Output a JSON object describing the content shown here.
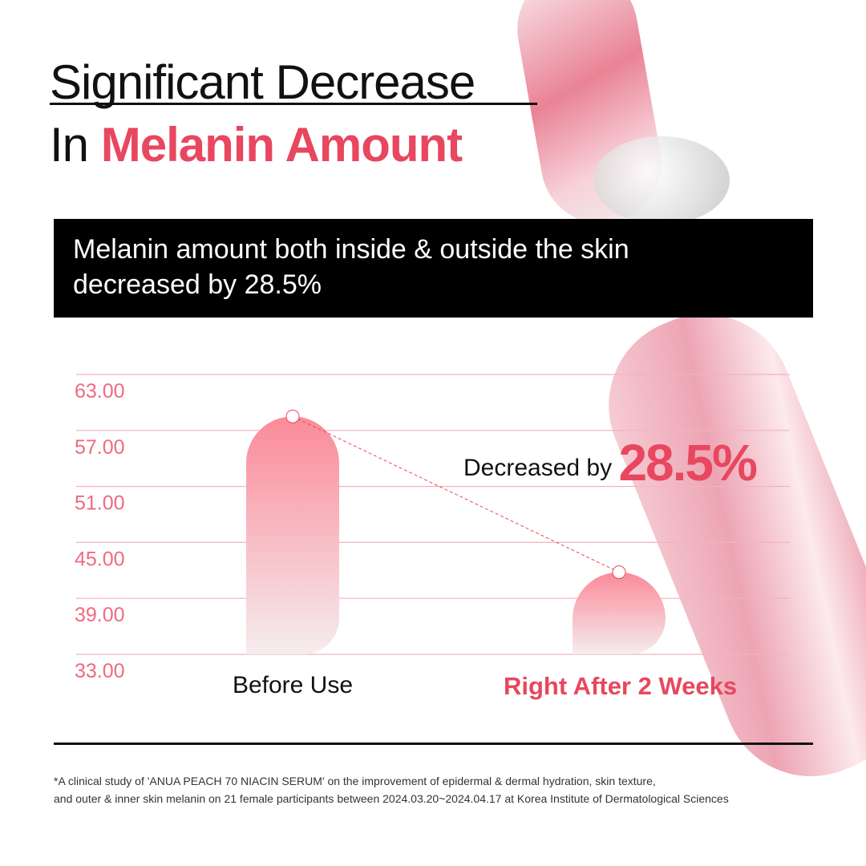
{
  "title": {
    "line1": "Significant Decrease",
    "line2_plain": "In ",
    "line2_accent": "Melanin Amount"
  },
  "banner": {
    "line1": "Melanin amount both inside & outside the skin",
    "line2": "decreased by 28.5%"
  },
  "callout": {
    "prefix": "Decreased by ",
    "value": "28.5%"
  },
  "footnote": {
    "line1": "*A clinical study of 'ANUA PEACH 70 NIACIN SERUM' on the improvement of epidermal & dermal hydration, skin texture,",
    "line2": "and outer & inner skin melanin on 21 female participants between 2024.03.20~2024.04.17 at Korea Institute of Dermatological Sciences"
  },
  "colors": {
    "accent": "#e8475f",
    "grid": "#f2b3bd",
    "bar_top": "#fb8a98",
    "bar_bottom": "#f5ecee"
  },
  "chart_data": {
    "type": "bar",
    "categories": [
      "Before Use",
      "Right After 2 Weeks"
    ],
    "values": [
      58.5,
      41.8
    ],
    "yticks": [
      "63.00",
      "57.00",
      "51.00",
      "45.00",
      "39.00",
      "33.00"
    ],
    "ylim": [
      33,
      63
    ],
    "grid": true,
    "trend_line": "dashed",
    "annotation": "Decreased by 28.5%"
  }
}
